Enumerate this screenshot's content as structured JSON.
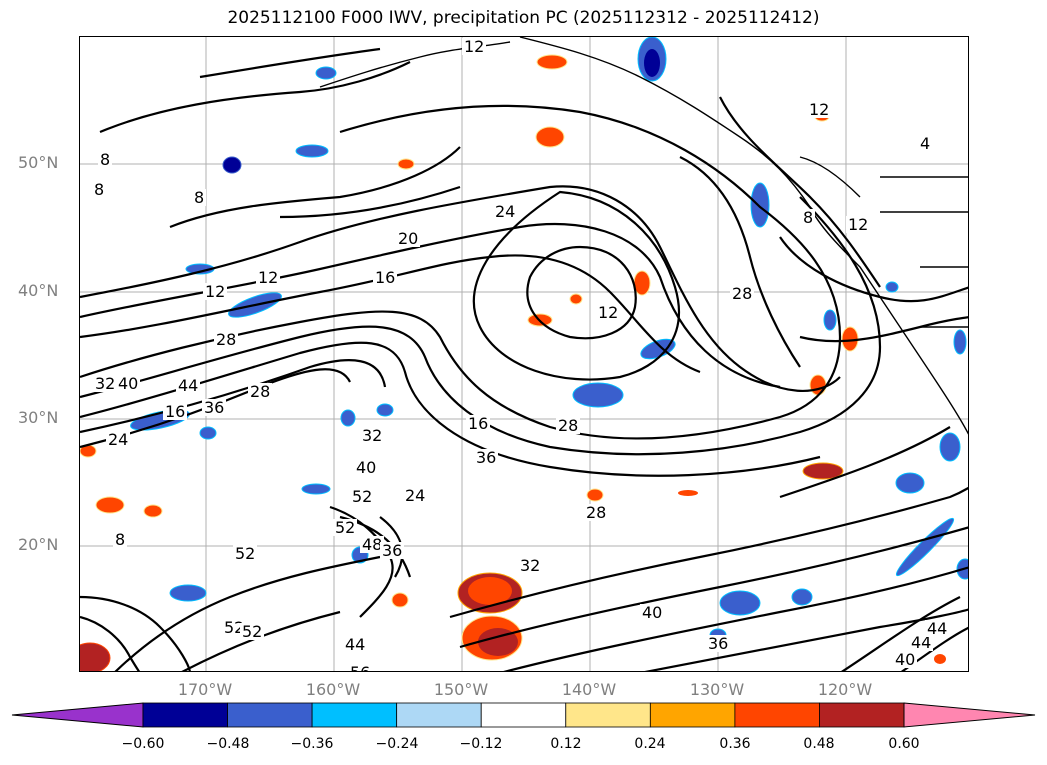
{
  "title": "2025112100 F000 IWV, precipitation PC (2025112312 - 2025112412)",
  "map": {
    "lat_labels": [
      "50°N",
      "40°N",
      "30°N",
      "20°N"
    ],
    "lon_labels": [
      "170°W",
      "160°W",
      "150°W",
      "140°W",
      "130°W",
      "120°W"
    ],
    "contour_labels": [
      "12",
      "8",
      "8",
      "8",
      "24",
      "20",
      "16",
      "12",
      "12",
      "28",
      "28",
      "32",
      "40",
      "44",
      "16",
      "24",
      "36",
      "28",
      "32",
      "16",
      "28",
      "36",
      "40",
      "52",
      "52",
      "48",
      "52",
      "36",
      "24",
      "32",
      "28",
      "40",
      "36",
      "44",
      "44",
      "40",
      "52",
      "52",
      "56",
      "44",
      "12",
      "8",
      "8",
      "12",
      "4",
      "12"
    ]
  },
  "colorbar": {
    "colors": [
      "#9932cc",
      "#000096",
      "#3a5fcd",
      "#00bfff",
      "#add8f5",
      "#ffffff",
      "#ffe68a",
      "#ffa500",
      "#ff4500",
      "#b22222",
      "#ff86b0"
    ],
    "ticks": [
      "−0.60",
      "−0.48",
      "−0.36",
      "−0.24",
      "−0.12",
      "0.12",
      "0.24",
      "0.36",
      "0.48",
      "0.60"
    ]
  }
}
